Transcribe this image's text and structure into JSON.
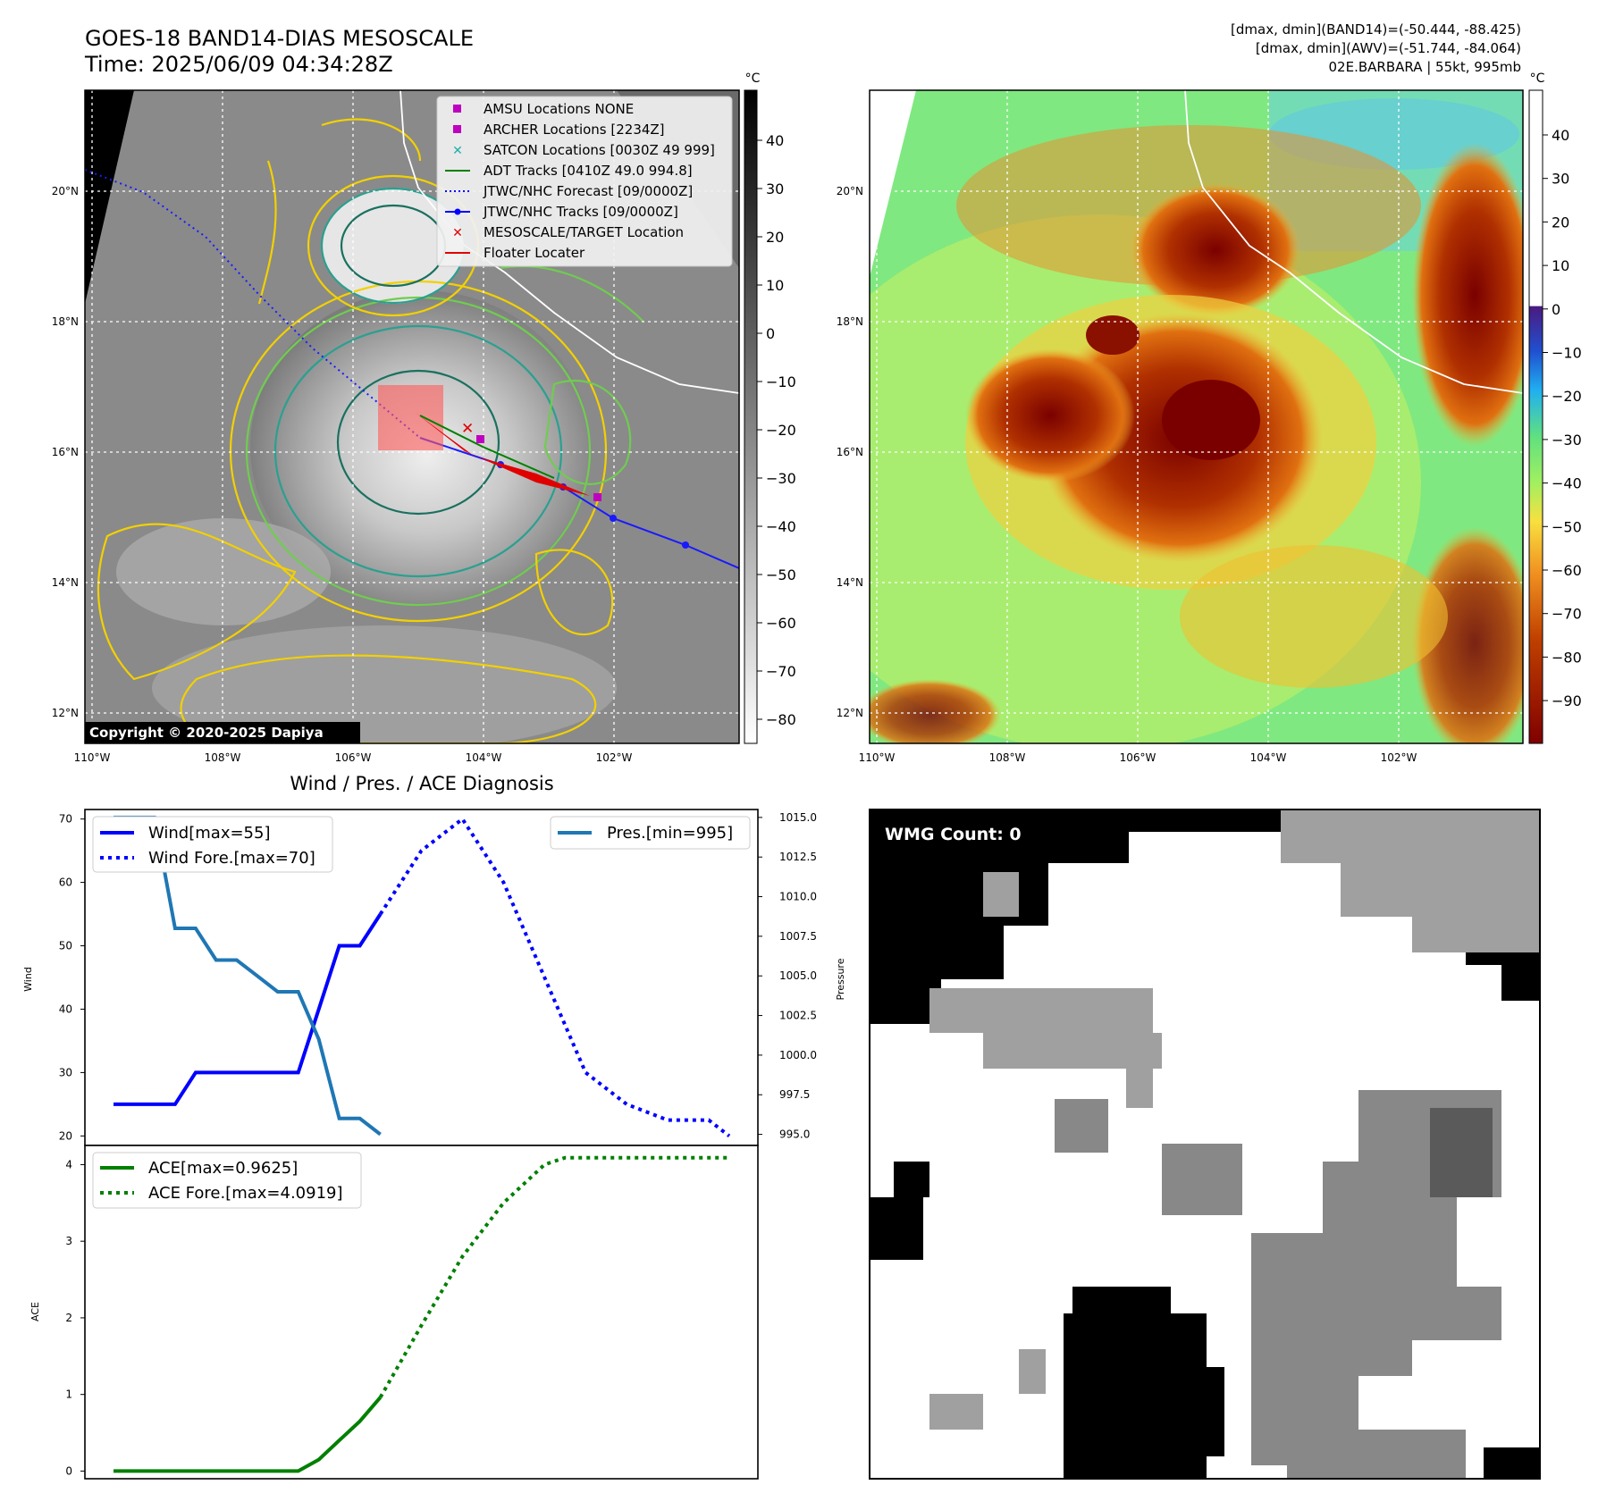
{
  "header": {
    "title_line1": "GOES-18 BAND14-DIAS MESOSCALE",
    "title_line2": "Time: 2025/06/09 04:34:28Z",
    "info_line1": "[dmax, dmin](BAND14)=(-50.444, -88.425)",
    "info_line2": "[dmax, dmin](AWV)=(-51.744, -84.064)",
    "info_line3": "02E.BARBARA | 55kt, 995mb",
    "copyright": "Copyright © 2020-2025 Dapiya"
  },
  "map": {
    "lon_ticks": [
      "110°W",
      "108°W",
      "106°W",
      "104°W",
      "102°W"
    ],
    "lat_ticks": [
      "20°N",
      "18°N",
      "16°N",
      "14°N",
      "12°N"
    ],
    "legend": [
      {
        "label": "AMSU Locations NONE",
        "marker": "square",
        "color": "#c000c0"
      },
      {
        "label": "ARCHER Locations [2234Z]",
        "marker": "square",
        "color": "#c000c0"
      },
      {
        "label": "SATCON Locations [0030Z 49 999]",
        "marker": "x",
        "color": "#20b0a8"
      },
      {
        "label": "ADT Tracks [0410Z 49.0 994.8]",
        "marker": "line",
        "color": "#008000"
      },
      {
        "label": "JTWC/NHC Forecast [09/0000Z]",
        "marker": "dotted",
        "color": "#0000ff"
      },
      {
        "label": "JTWC/NHC Tracks [09/0000Z]",
        "marker": "line-dot",
        "color": "#0000ff"
      },
      {
        "label": "MESOSCALE/TARGET Location",
        "marker": "x",
        "color": "#e00000"
      },
      {
        "label": "Floater Locater",
        "marker": "line",
        "color": "#e00000"
      }
    ],
    "colorbar_unit": "°C",
    "colorbar1_ticks": [
      "40",
      "30",
      "20",
      "10",
      "0",
      "−10",
      "−20",
      "−30",
      "−40",
      "−50",
      "−60",
      "−70",
      "−80"
    ],
    "colorbar2_ticks": [
      "40",
      "30",
      "20",
      "10",
      "0",
      "−10",
      "−20",
      "−30",
      "−40",
      "−50",
      "−60",
      "−70",
      "−80",
      "−90"
    ]
  },
  "chart_data": [
    {
      "type": "line",
      "title": "Wind / Pres. / ACE Diagnosis",
      "ylabel": "Wind",
      "ylabel_right": "Pressure",
      "ylim": [
        18.5,
        71.5
      ],
      "ylim_right": [
        994.3,
        1015.5
      ],
      "yticks": [
        20,
        30,
        40,
        50,
        60,
        70
      ],
      "yticks_right": [
        "995.0",
        "997.5",
        "1000.0",
        "1002.5",
        "1005.0",
        "1007.5",
        "1010.0",
        "1012.5",
        "1015.0"
      ],
      "x_index_range": [
        0,
        30
      ],
      "series": [
        {
          "name": "Wind[max=55]",
          "axis": "left",
          "style": "solid",
          "color": "#0000ff",
          "x": [
            0,
            1,
            2,
            3,
            4,
            5,
            6,
            7,
            8,
            9,
            10,
            11,
            12,
            13
          ],
          "values": [
            25,
            25,
            25,
            25,
            30,
            30,
            30,
            30,
            30,
            30,
            40,
            50,
            50,
            55
          ]
        },
        {
          "name": "Wind Fore.[max=70]",
          "axis": "left",
          "style": "dotted",
          "color": "#0000ff",
          "x": [
            13,
            15,
            17,
            19,
            21,
            23,
            25,
            27,
            28,
            29,
            30
          ],
          "values": [
            55,
            65,
            70,
            60,
            45,
            30,
            25,
            22.5,
            22.5,
            22.5,
            20
          ]
        },
        {
          "name": "Pres.[min=995]",
          "axis": "right",
          "style": "solid",
          "color": "#1f77b4",
          "x": [
            0,
            1,
            2,
            3,
            4,
            5,
            6,
            7,
            8,
            9,
            10,
            11,
            12,
            13
          ],
          "values": [
            1015,
            1015,
            1015,
            1008,
            1008,
            1006,
            1006,
            1005,
            1004,
            1004,
            1001,
            996,
            996,
            995
          ]
        }
      ]
    },
    {
      "type": "line",
      "ylabel": "ACE",
      "ylim": [
        -0.1,
        4.25
      ],
      "yticks": [
        0,
        1,
        2,
        3,
        4
      ],
      "x_index_range": [
        0,
        30
      ],
      "series": [
        {
          "name": "ACE[max=0.9625]",
          "style": "solid",
          "color": "#008000",
          "x": [
            0,
            1,
            2,
            3,
            4,
            5,
            6,
            7,
            8,
            9,
            10,
            11,
            12,
            13
          ],
          "values": [
            0,
            0,
            0,
            0,
            0,
            0,
            0,
            0,
            0,
            0,
            0.15,
            0.4,
            0.65,
            0.9625
          ]
        },
        {
          "name": "ACE Fore.[max=4.0919]",
          "style": "dotted",
          "color": "#008000",
          "x": [
            13,
            15,
            17,
            19,
            21,
            22,
            24,
            26,
            28,
            30
          ],
          "values": [
            0.9625,
            1.9,
            2.8,
            3.5,
            4.0,
            4.09,
            4.09,
            4.09,
            4.09,
            4.09
          ]
        }
      ]
    }
  ],
  "wmg": {
    "label": "WMG Count: 0"
  }
}
